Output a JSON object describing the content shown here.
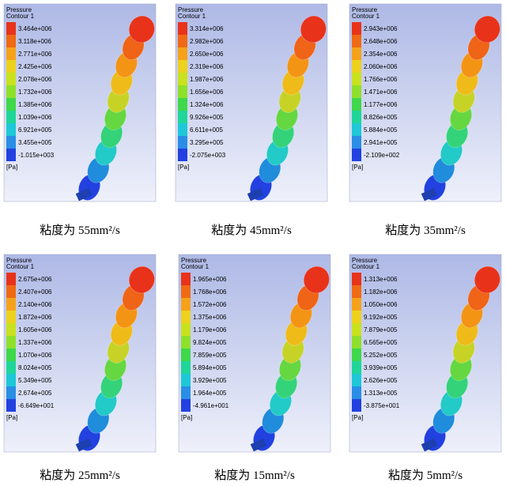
{
  "panels": [
    {
      "legend_title": "Pressure",
      "legend_subtitle": "Contour 1",
      "labels": [
        "3.464e+006",
        "3.118e+006",
        "2.771e+006",
        "2.425e+006",
        "2.078e+006",
        "1.732e+006",
        "1.385e+006",
        "1.039e+006",
        "6.921e+005",
        "3.455e+005",
        "-1.015e+003"
      ],
      "unit": "[Pa]",
      "caption": "粘度为 55mm²/s"
    },
    {
      "legend_title": "Pressure",
      "legend_subtitle": "Contour 1",
      "labels": [
        "3.314e+006",
        "2.982e+006",
        "2.650e+006",
        "2.319e+006",
        "1.987e+006",
        "1.656e+006",
        "1.324e+006",
        "9.926e+005",
        "6.611e+005",
        "3.295e+005",
        "-2.075e+003"
      ],
      "unit": "[Pa]",
      "caption": "粘度为 45mm²/s"
    },
    {
      "legend_title": "Pressure",
      "legend_subtitle": "Contour 1",
      "labels": [
        "2.943e+006",
        "2.648e+006",
        "2.354e+006",
        "2.060e+006",
        "1.766e+006",
        "1.471e+006",
        "1.177e+006",
        "8.826e+005",
        "5.884e+005",
        "2.941e+005",
        "-2.109e+002"
      ],
      "unit": "[Pa]",
      "caption": "粘度为 35mm²/s"
    },
    {
      "legend_title": "Pressure",
      "legend_subtitle": "Contour 1",
      "labels": [
        "2.675e+006",
        "2.407e+006",
        "2.140e+006",
        "1.872e+006",
        "1.605e+006",
        "1.337e+006",
        "1.070e+006",
        "8.024e+005",
        "5.349e+005",
        "2.674e+005",
        "-6.649e+001"
      ],
      "unit": "[Pa]",
      "caption": "粘度为 25mm²/s"
    },
    {
      "legend_title": "Pressure",
      "legend_subtitle": "Contour 1",
      "labels": [
        "1.965e+006",
        "1.768e+006",
        "1.572e+006",
        "1.375e+006",
        "1.179e+006",
        "9.824e+005",
        "7.859e+005",
        "5.894e+005",
        "3.929e+005",
        "1.964e+005",
        "-4.961e+001"
      ],
      "unit": "[Pa]",
      "caption": "粘度为 15mm²/s"
    },
    {
      "legend_title": "Pressure",
      "legend_subtitle": "Contour 1",
      "labels": [
        "1.313e+006",
        "1.182e+006",
        "1.050e+006",
        "9.192e+005",
        "7.879e+005",
        "6.565e+005",
        "5.252e+005",
        "3.939e+005",
        "2.626e+005",
        "1.313e+005",
        "-3.875e+001"
      ],
      "unit": "[Pa]",
      "caption": "粘度为 5mm²/s"
    }
  ]
}
